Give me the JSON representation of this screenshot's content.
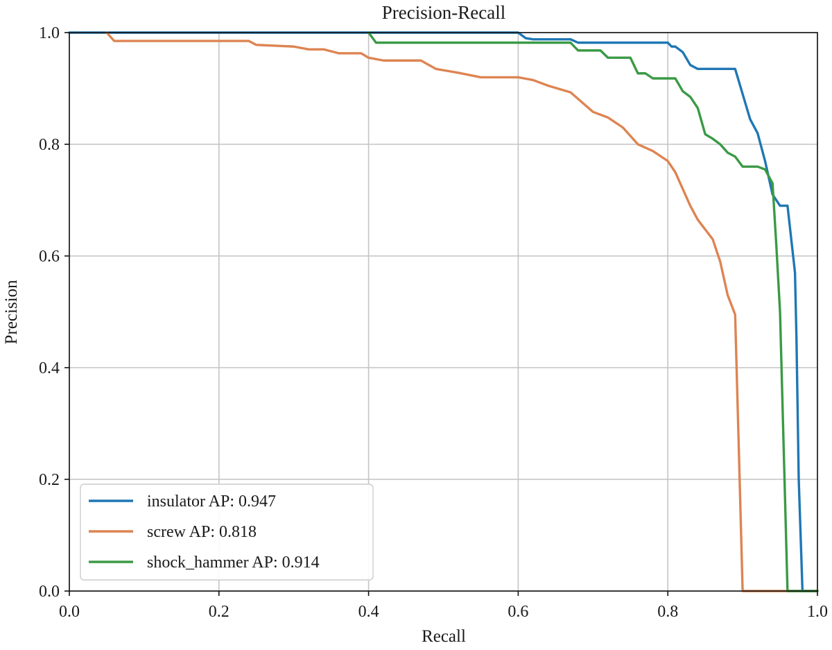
{
  "chart_data": {
    "type": "line",
    "title": "Precision-Recall",
    "xlabel": "Recall",
    "ylabel": "Precision",
    "xlim": [
      0.0,
      1.0
    ],
    "ylim": [
      0.0,
      1.0
    ],
    "grid": true,
    "legend_position": "bottom-left",
    "xticks": [
      "0.0",
      "0.2",
      "0.4",
      "0.6",
      "0.8",
      "1.0"
    ],
    "yticks": [
      "0.0",
      "0.2",
      "0.4",
      "0.6",
      "0.8",
      "1.0"
    ],
    "series": [
      {
        "name": "insulator AP: 0.947",
        "color": "#1f77b4",
        "points": [
          [
            0.0,
            1.0
          ],
          [
            0.6,
            1.0
          ],
          [
            0.61,
            0.99
          ],
          [
            0.62,
            0.988
          ],
          [
            0.67,
            0.988
          ],
          [
            0.68,
            0.982
          ],
          [
            0.7,
            0.982
          ],
          [
            0.8,
            0.982
          ],
          [
            0.805,
            0.975
          ],
          [
            0.81,
            0.975
          ],
          [
            0.82,
            0.965
          ],
          [
            0.83,
            0.942
          ],
          [
            0.84,
            0.935
          ],
          [
            0.89,
            0.935
          ],
          [
            0.9,
            0.89
          ],
          [
            0.91,
            0.845
          ],
          [
            0.92,
            0.82
          ],
          [
            0.93,
            0.77
          ],
          [
            0.94,
            0.71
          ],
          [
            0.95,
            0.69
          ],
          [
            0.96,
            0.69
          ],
          [
            0.97,
            0.57
          ],
          [
            0.972,
            0.45
          ],
          [
            0.975,
            0.2
          ],
          [
            0.98,
            0.0
          ],
          [
            1.0,
            0.0
          ]
        ]
      },
      {
        "name": "screw AP: 0.818",
        "color": "#dd8452",
        "points": [
          [
            0.05,
            1.0
          ],
          [
            0.06,
            0.985
          ],
          [
            0.24,
            0.985
          ],
          [
            0.25,
            0.978
          ],
          [
            0.3,
            0.975
          ],
          [
            0.32,
            0.97
          ],
          [
            0.34,
            0.97
          ],
          [
            0.36,
            0.963
          ],
          [
            0.39,
            0.963
          ],
          [
            0.4,
            0.955
          ],
          [
            0.42,
            0.95
          ],
          [
            0.47,
            0.95
          ],
          [
            0.49,
            0.935
          ],
          [
            0.52,
            0.928
          ],
          [
            0.55,
            0.92
          ],
          [
            0.6,
            0.92
          ],
          [
            0.62,
            0.915
          ],
          [
            0.64,
            0.905
          ],
          [
            0.67,
            0.893
          ],
          [
            0.7,
            0.858
          ],
          [
            0.72,
            0.848
          ],
          [
            0.74,
            0.83
          ],
          [
            0.76,
            0.8
          ],
          [
            0.78,
            0.788
          ],
          [
            0.8,
            0.77
          ],
          [
            0.81,
            0.75
          ],
          [
            0.82,
            0.72
          ],
          [
            0.83,
            0.69
          ],
          [
            0.84,
            0.665
          ],
          [
            0.86,
            0.63
          ],
          [
            0.87,
            0.59
          ],
          [
            0.88,
            0.53
          ],
          [
            0.89,
            0.495
          ],
          [
            0.895,
            0.25
          ],
          [
            0.9,
            0.0
          ],
          [
            1.0,
            0.0
          ]
        ]
      },
      {
        "name": "shock_hammer AP: 0.914",
        "color": "#3a9a45",
        "points": [
          [
            0.4,
            1.0
          ],
          [
            0.41,
            0.982
          ],
          [
            0.67,
            0.982
          ],
          [
            0.68,
            0.968
          ],
          [
            0.71,
            0.968
          ],
          [
            0.72,
            0.955
          ],
          [
            0.75,
            0.955
          ],
          [
            0.76,
            0.927
          ],
          [
            0.77,
            0.927
          ],
          [
            0.78,
            0.918
          ],
          [
            0.81,
            0.918
          ],
          [
            0.82,
            0.895
          ],
          [
            0.83,
            0.885
          ],
          [
            0.84,
            0.865
          ],
          [
            0.85,
            0.818
          ],
          [
            0.86,
            0.81
          ],
          [
            0.87,
            0.8
          ],
          [
            0.88,
            0.785
          ],
          [
            0.89,
            0.778
          ],
          [
            0.9,
            0.76
          ],
          [
            0.92,
            0.76
          ],
          [
            0.93,
            0.755
          ],
          [
            0.94,
            0.73
          ],
          [
            0.945,
            0.62
          ],
          [
            0.95,
            0.5
          ],
          [
            0.955,
            0.25
          ],
          [
            0.96,
            0.0
          ],
          [
            1.0,
            0.0
          ]
        ]
      }
    ]
  }
}
